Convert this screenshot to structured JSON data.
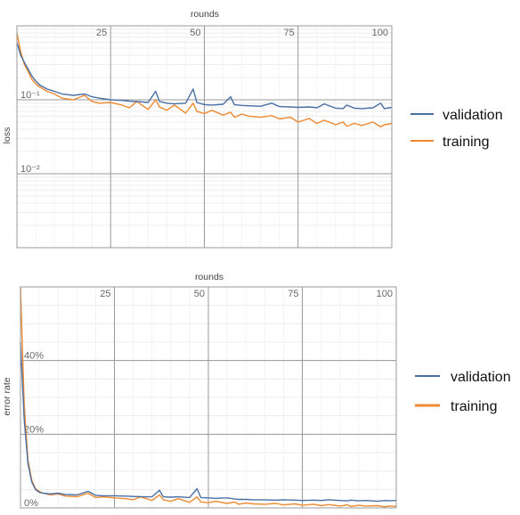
{
  "chart_data": [
    {
      "type": "line",
      "xlabel": "rounds",
      "ylabel": "loss",
      "yscale": "log",
      "xlim": [
        0,
        100
      ],
      "ylim": [
        0.001,
        1
      ],
      "xticks": [
        25,
        50,
        75,
        100
      ],
      "xtick_labels": [
        "25",
        "50",
        "75",
        "100"
      ],
      "yticks": [
        0.1,
        0.01
      ],
      "ytick_labels": [
        "10⁻¹",
        "10⁻²"
      ],
      "grid": true,
      "legend": "right",
      "series": [
        {
          "name": "validation",
          "color": "#4a6fa5",
          "x": [
            0,
            1,
            2,
            3,
            4,
            5,
            6,
            8,
            10,
            12,
            15,
            18,
            20,
            22,
            25,
            28,
            30,
            33,
            35,
            37,
            38,
            40,
            42,
            45,
            47,
            48,
            50,
            52,
            55,
            57,
            58,
            60,
            62,
            65,
            68,
            70,
            73,
            75,
            78,
            80,
            82,
            85,
            87,
            88,
            90,
            92,
            95,
            97,
            98,
            100
          ],
          "values": [
            0.6,
            0.4,
            0.32,
            0.26,
            0.21,
            0.18,
            0.16,
            0.14,
            0.13,
            0.12,
            0.115,
            0.12,
            0.11,
            0.105,
            0.1,
            0.098,
            0.096,
            0.094,
            0.092,
            0.13,
            0.095,
            0.09,
            0.088,
            0.09,
            0.14,
            0.092,
            0.086,
            0.085,
            0.087,
            0.11,
            0.086,
            0.084,
            0.083,
            0.082,
            0.09,
            0.081,
            0.08,
            0.079,
            0.08,
            0.078,
            0.088,
            0.077,
            0.076,
            0.085,
            0.077,
            0.076,
            0.078,
            0.09,
            0.076,
            0.079
          ]
        },
        {
          "name": "training",
          "color": "#ee8a30",
          "x": [
            0,
            1,
            2,
            3,
            4,
            5,
            6,
            8,
            10,
            12,
            15,
            18,
            20,
            22,
            25,
            28,
            30,
            32,
            35,
            37,
            38,
            40,
            42,
            45,
            47,
            48,
            50,
            52,
            55,
            57,
            58,
            60,
            62,
            65,
            68,
            70,
            73,
            75,
            78,
            80,
            82,
            85,
            87,
            88,
            90,
            92,
            95,
            97,
            98,
            100
          ],
          "values": [
            0.8,
            0.45,
            0.3,
            0.24,
            0.19,
            0.165,
            0.15,
            0.13,
            0.12,
            0.105,
            0.1,
            0.115,
            0.095,
            0.09,
            0.092,
            0.085,
            0.078,
            0.095,
            0.074,
            0.1,
            0.08,
            0.072,
            0.085,
            0.066,
            0.09,
            0.07,
            0.065,
            0.072,
            0.062,
            0.068,
            0.058,
            0.064,
            0.06,
            0.058,
            0.061,
            0.055,
            0.058,
            0.05,
            0.056,
            0.048,
            0.053,
            0.046,
            0.05,
            0.044,
            0.048,
            0.045,
            0.05,
            0.043,
            0.046,
            0.048
          ]
        }
      ]
    },
    {
      "type": "line",
      "xlabel": "rounds",
      "ylabel": "error rate",
      "xlim": [
        0,
        100
      ],
      "ylim": [
        0,
        0.6
      ],
      "xticks": [
        25,
        50,
        75,
        100
      ],
      "xtick_labels": [
        "25",
        "50",
        "75",
        "100"
      ],
      "yticks": [
        0,
        0.2,
        0.4
      ],
      "ytick_labels": [
        "0%",
        "20%",
        "40%"
      ],
      "grid": true,
      "legend": "right",
      "series": [
        {
          "name": "validation",
          "color": "#4a6fa5",
          "x": [
            0,
            1,
            2,
            3,
            4,
            5,
            6,
            8,
            10,
            12,
            15,
            18,
            20,
            22,
            25,
            28,
            30,
            33,
            35,
            37,
            38,
            40,
            42,
            45,
            47,
            48,
            50,
            52,
            55,
            57,
            58,
            60,
            62,
            65,
            68,
            70,
            73,
            75,
            78,
            80,
            82,
            85,
            87,
            88,
            90,
            92,
            95,
            97,
            98,
            100
          ],
          "values": [
            0.45,
            0.24,
            0.12,
            0.07,
            0.05,
            0.042,
            0.04,
            0.038,
            0.04,
            0.036,
            0.035,
            0.045,
            0.034,
            0.033,
            0.033,
            0.032,
            0.031,
            0.03,
            0.03,
            0.048,
            0.03,
            0.029,
            0.03,
            0.028,
            0.052,
            0.028,
            0.027,
            0.026,
            0.027,
            0.024,
            0.023,
            0.023,
            0.022,
            0.022,
            0.021,
            0.022,
            0.021,
            0.02,
            0.021,
            0.02,
            0.022,
            0.02,
            0.019,
            0.021,
            0.019,
            0.02,
            0.018,
            0.02,
            0.019,
            0.02
          ]
        },
        {
          "name": "training",
          "color": "#ee8a30",
          "x": [
            0,
            1,
            2,
            3,
            4,
            5,
            6,
            8,
            10,
            12,
            15,
            18,
            20,
            22,
            25,
            28,
            30,
            32,
            35,
            37,
            38,
            40,
            42,
            45,
            47,
            48,
            50,
            52,
            55,
            57,
            58,
            60,
            62,
            65,
            68,
            70,
            73,
            75,
            78,
            80,
            82,
            85,
            87,
            88,
            90,
            92,
            95,
            97,
            98,
            100
          ],
          "values": [
            0.6,
            0.28,
            0.13,
            0.075,
            0.052,
            0.045,
            0.04,
            0.035,
            0.038,
            0.032,
            0.03,
            0.04,
            0.028,
            0.03,
            0.027,
            0.025,
            0.022,
            0.03,
            0.02,
            0.035,
            0.022,
            0.018,
            0.025,
            0.015,
            0.03,
            0.016,
            0.014,
            0.018,
            0.012,
            0.016,
            0.01,
            0.013,
            0.011,
            0.01,
            0.012,
            0.008,
            0.011,
            0.007,
            0.01,
            0.006,
            0.009,
            0.005,
            0.008,
            0.004,
            0.007,
            0.005,
            0.006,
            0.003,
            0.005,
            0.004
          ]
        }
      ]
    }
  ]
}
